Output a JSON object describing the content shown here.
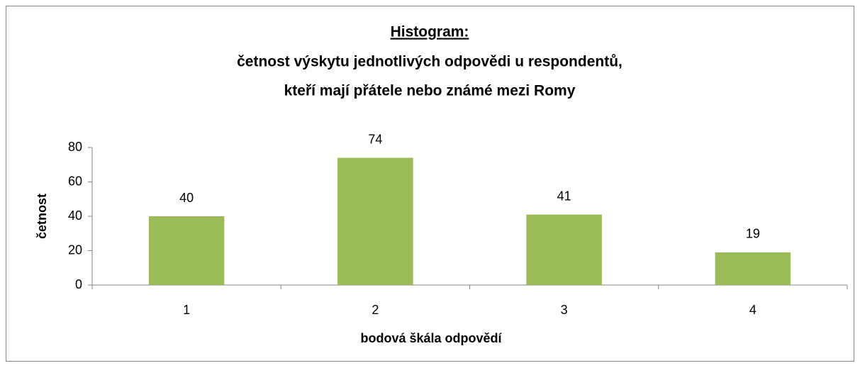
{
  "chart_data": {
    "type": "bar",
    "title": [
      "Histogram:",
      "četnost výskytu jednotlivých odpovědi u respondentů,",
      "kteří mají přátele nebo známé mezi Romy"
    ],
    "categories": [
      "1",
      "2",
      "3",
      "4"
    ],
    "values": [
      40,
      74,
      41,
      19
    ],
    "color": "#9bbb59",
    "ylim": [
      0,
      80
    ],
    "yticks": [
      0,
      20,
      40,
      60,
      80
    ],
    "xlabel": "bodová škála odpovědí",
    "ylabel": "četnost",
    "grid": false
  }
}
